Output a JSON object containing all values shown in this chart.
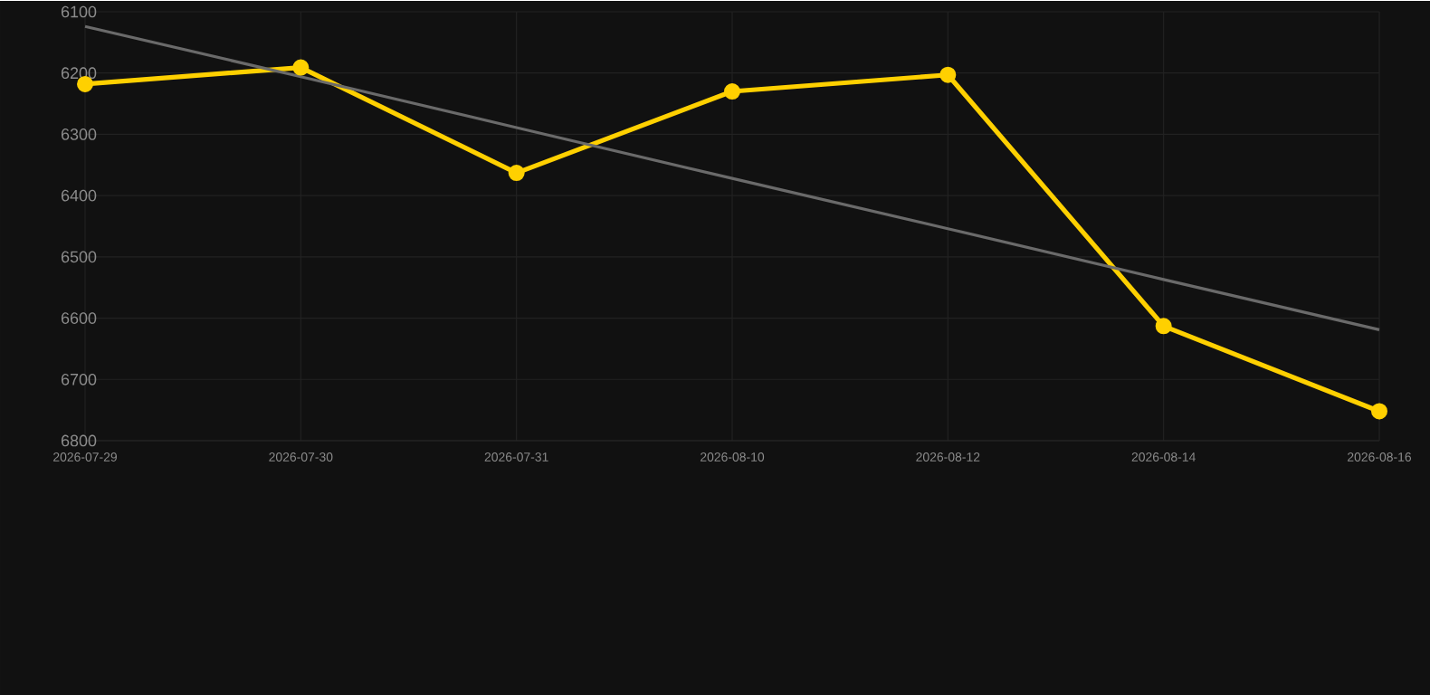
{
  "chart_data": {
    "type": "line",
    "categories": [
      "2026-07-29",
      "2026-07-30",
      "2026-07-31",
      "2026-08-10",
      "2026-08-12",
      "2026-08-14",
      "2026-08-16"
    ],
    "series": [
      {
        "color": "#ffd000",
        "values": [
          6218,
          6191,
          6363,
          6230,
          6203,
          6613,
          6752
        ],
        "marker": "circle"
      },
      {
        "type": "line",
        "color": "#6a6a6a",
        "values": [
          6124,
          6206,
          6289,
          6372,
          6454,
          6537,
          6619
        ],
        "marker": "none"
      }
    ],
    "ylim": [
      6800,
      6100
    ],
    "yticks": [
      6100,
      6200,
      6300,
      6400,
      6500,
      6600,
      6700,
      6800
    ],
    "grid": true
  }
}
